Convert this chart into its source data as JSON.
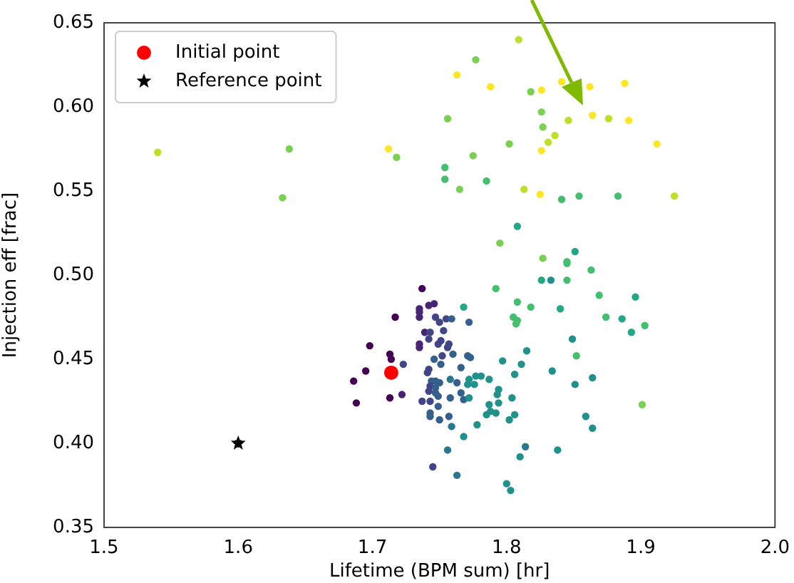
{
  "chart_data": {
    "type": "scatter",
    "xlabel": "Lifetime (BPM sum) [hr]",
    "ylabel": "Injection eff [frac]",
    "xlim": [
      1.5,
      2.0
    ],
    "xticks": [
      1.5,
      1.6,
      1.7,
      1.8,
      1.9,
      {
        "value": 2,
        "label": "2.0"
      }
    ],
    "ylim": [
      0.35,
      0.65
    ],
    "yticks": [
      0.35,
      {
        "value": 0.4,
        "label": "0.40"
      },
      0.45,
      {
        "value": 0.5,
        "label": "0.50"
      },
      0.55,
      {
        "value": 0.6,
        "label": "0.60"
      },
      0.65
    ],
    "grid": false,
    "legend": "top left",
    "marker": "circle",
    "series": [
      {
        "x": [
          1.54,
          1.638,
          1.633,
          1.712,
          1.718,
          1.809,
          1.777,
          1.763,
          1.788,
          1.818,
          1.826,
          1.841,
          1.862,
          1.888,
          1.756,
          1.826,
          1.827,
          1.846,
          1.864,
          1.876,
          1.891,
          1.836,
          1.831,
          1.802,
          1.826,
          1.912,
          1.775,
          1.754,
          1.754,
          1.785,
          1.765,
          1.813,
          1.825,
          1.841,
          1.854,
          1.883,
          1.925,
          1.808,
          1.795,
          1.851,
          1.827,
          1.845,
          1.845,
          1.863,
          1.826,
          1.833,
          1.845,
          1.808,
          1.818,
          1.84,
          1.805,
          1.808,
          1.807,
          1.869,
          1.896,
          1.874,
          1.886,
          1.903,
          1.893,
          1.849,
          1.852,
          1.815,
          1.811,
          1.834,
          1.806,
          1.864,
          1.851,
          1.804,
          1.806,
          1.901,
          1.859,
          1.864,
          1.814,
          1.838,
          1.81,
          1.803,
          1.737,
          1.768,
          1.792,
          1.742,
          1.746,
          1.735,
          1.735,
          1.735,
          1.717,
          1.747,
          1.75,
          1.755,
          1.759,
          1.772,
          1.753,
          1.739,
          1.743,
          1.742,
          1.751,
          1.749,
          1.757,
          1.735,
          1.735,
          1.698,
          1.756,
          1.76,
          1.713,
          1.752,
          1.746,
          1.771,
          1.773,
          1.714,
          1.751,
          1.742,
          1.766,
          1.723,
          1.695,
          1.741,
          1.744,
          1.747,
          1.75,
          1.758,
          1.763,
          1.772,
          1.777,
          1.781,
          1.787,
          1.771,
          1.776,
          1.686,
          1.743,
          1.747,
          1.742,
          1.747,
          1.766,
          1.737,
          1.743,
          1.749,
          1.758,
          1.768,
          1.772,
          1.713,
          1.722,
          1.688,
          1.794,
          1.793,
          1.787,
          1.794,
          1.749,
          1.743,
          1.743,
          1.757,
          1.75,
          1.759,
          1.778,
          1.785,
          1.788,
          1.792,
          1.802,
          1.768,
          1.756,
          1.745,
          1.763,
          1.8,
          1.797
        ],
        "values": [
          0.573,
          0.575,
          0.546,
          0.575,
          0.57,
          0.64,
          0.628,
          0.619,
          0.612,
          0.609,
          0.61,
          0.615,
          0.612,
          0.614,
          0.593,
          0.597,
          0.588,
          0.592,
          0.595,
          0.593,
          0.592,
          0.583,
          0.579,
          0.578,
          0.574,
          0.578,
          0.571,
          0.564,
          0.557,
          0.556,
          0.551,
          0.551,
          0.548,
          0.545,
          0.547,
          0.547,
          0.547,
          0.529,
          0.519,
          0.514,
          0.51,
          0.508,
          0.507,
          0.503,
          0.497,
          0.497,
          0.497,
          0.484,
          0.481,
          0.48,
          0.475,
          0.473,
          0.471,
          0.488,
          0.487,
          0.475,
          0.474,
          0.47,
          0.466,
          0.462,
          0.452,
          0.455,
          0.447,
          0.443,
          0.441,
          0.439,
          0.435,
          0.427,
          0.417,
          0.423,
          0.416,
          0.409,
          0.398,
          0.396,
          0.392,
          0.372,
          0.492,
          0.481,
          0.492,
          0.482,
          0.483,
          0.48,
          0.478,
          0.475,
          0.475,
          0.475,
          0.472,
          0.474,
          0.474,
          0.472,
          0.467,
          0.466,
          0.466,
          0.462,
          0.461,
          0.459,
          0.459,
          0.459,
          0.457,
          0.458,
          0.457,
          0.453,
          0.453,
          0.452,
          0.45,
          0.452,
          0.451,
          0.45,
          0.447,
          0.444,
          0.445,
          0.447,
          0.443,
          0.442,
          0.437,
          0.437,
          0.436,
          0.438,
          0.436,
          0.438,
          0.44,
          0.44,
          0.438,
          0.435,
          0.435,
          0.437,
          0.434,
          0.433,
          0.431,
          0.43,
          0.43,
          0.425,
          0.425,
          0.428,
          0.427,
          0.426,
          0.427,
          0.427,
          0.429,
          0.424,
          0.432,
          0.429,
          0.423,
          0.424,
          0.422,
          0.418,
          0.416,
          0.416,
          0.414,
          0.41,
          0.411,
          0.417,
          0.419,
          0.418,
          0.414,
          0.404,
          0.396,
          0.386,
          0.381,
          0.376,
          0.449
        ],
        "colors": [
          "#bddf26",
          "#7ad151",
          "#7ad151",
          "#fde725",
          "#7ad151",
          "#bddf26",
          "#7ad151",
          "#fde725",
          "#fde725",
          "#7ad151",
          "#fde725",
          "#fde725",
          "#fde725",
          "#fde725",
          "#7ad151",
          "#7ad151",
          "#7ad151",
          "#bddf26",
          "#fde725",
          "#bddf26",
          "#fde725",
          "#bddf26",
          "#bddf26",
          "#7ad151",
          "#fde725",
          "#fde725",
          "#7ad151",
          "#44bf70",
          "#44bf70",
          "#44bf70",
          "#7ad151",
          "#bddf26",
          "#fde725",
          "#44bf70",
          "#44bf70",
          "#44bf70",
          "#bddf26",
          "#22a884",
          "#7ad151",
          "#22a884",
          "#7ad151",
          "#44bf70",
          "#44bf70",
          "#44bf70",
          "#22a884",
          "#21918c",
          "#44bf70",
          "#44bf70",
          "#44bf70",
          "#22a884",
          "#44bf70",
          "#44bf70",
          "#44bf70",
          "#44bf70",
          "#22a884",
          "#44bf70",
          "#22a884",
          "#44bf70",
          "#22a884",
          "#21918c",
          "#44bf70",
          "#21918c",
          "#21918c",
          "#21918c",
          "#21918c",
          "#21918c",
          "#21918c",
          "#21918c",
          "#21918c",
          "#7ad151",
          "#21918c",
          "#21918c",
          "#2a788e",
          "#21918c",
          "#21918c",
          "#21918c",
          "#440154",
          "#22a884",
          "#44bf70",
          "#482475",
          "#482475",
          "#482475",
          "#482475",
          "#482475",
          "#440154",
          "#414487",
          "#414487",
          "#414487",
          "#355f8d",
          "#355f8d",
          "#414487",
          "#482475",
          "#414487",
          "#414487",
          "#414487",
          "#414487",
          "#414487",
          "#482475",
          "#482475",
          "#440154",
          "#414487",
          "#355f8d",
          "#440154",
          "#414487",
          "#355f8d",
          "#355f8d",
          "#355f8d",
          "#440154",
          "#355f8d",
          "#414487",
          "#355f8d",
          "#414487",
          "#440154",
          "#414487",
          "#355f8d",
          "#355f8d",
          "#355f8d",
          "#2a788e",
          "#355f8d",
          "#21918c",
          "#21918c",
          "#21918c",
          "#21918c",
          "#21918c",
          "#21918c",
          "#440154",
          "#414487",
          "#355f8d",
          "#414487",
          "#355f8d",
          "#355f8d",
          "#414487",
          "#414487",
          "#355f8d",
          "#355f8d",
          "#355f8d",
          "#21918c",
          "#440154",
          "#482475",
          "#440154",
          "#21918c",
          "#21918c",
          "#21918c",
          "#21918c",
          "#355f8d",
          "#355f8d",
          "#355f8d",
          "#355f8d",
          "#355f8d",
          "#2a788e",
          "#21918c",
          "#21918c",
          "#21918c",
          "#21918c",
          "#21918c",
          "#21918c",
          "#2a788e",
          "#414487",
          "#2a788e",
          "#21918c",
          "#21918c"
        ]
      },
      {
        "name": "Initial point",
        "color": "#ff0000",
        "marker": "circle",
        "x": [
          1.714
        ],
        "values": [
          0.442
        ]
      },
      {
        "name": "Reference point",
        "color": "#000000",
        "marker": "star",
        "x": [
          1.6
        ],
        "values": [
          0.4
        ]
      }
    ]
  }
}
